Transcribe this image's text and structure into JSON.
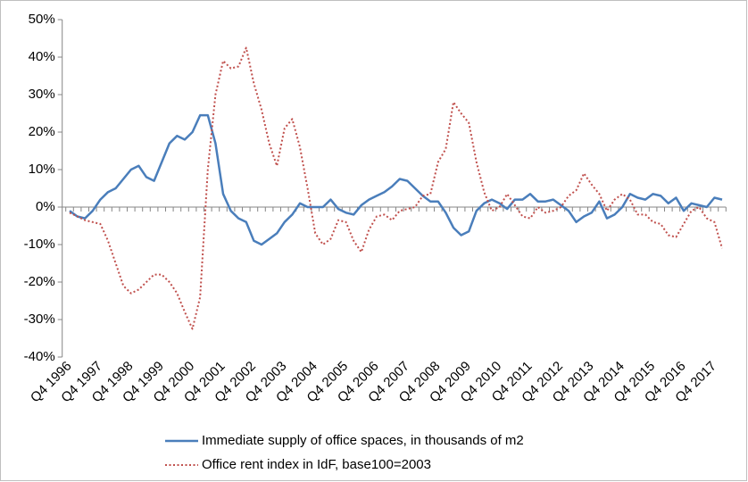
{
  "chart_data": {
    "type": "line",
    "categories": [
      "Q4 1996",
      null,
      null,
      null,
      "Q4 1997",
      null,
      null,
      null,
      "Q4 1998",
      null,
      null,
      null,
      "Q4 1999",
      null,
      null,
      null,
      "Q4 2000",
      null,
      null,
      null,
      "Q4 2001",
      null,
      null,
      null,
      "Q4 2002",
      null,
      null,
      null,
      "Q4 2003",
      null,
      null,
      null,
      "Q4 2004",
      null,
      null,
      null,
      "Q4 2005",
      null,
      null,
      null,
      "Q4 2006",
      null,
      null,
      null,
      "Q4 2007",
      null,
      null,
      null,
      "Q4 2008",
      null,
      null,
      null,
      "Q4 2009",
      null,
      null,
      null,
      "Q4 2010",
      null,
      null,
      null,
      "Q4 2011",
      null,
      null,
      null,
      "Q4 2012",
      null,
      null,
      null,
      "Q4 2013",
      null,
      null,
      null,
      "Q4 2014",
      null,
      null,
      null,
      "Q4 2015",
      null,
      null,
      null,
      "Q4 2016",
      null,
      null,
      null,
      "Q4 2017",
      null
    ],
    "series": [
      {
        "name": "Immediate supply of office spaces, in thousands of m2",
        "color": "#4a7ebb",
        "dash": "solid",
        "values": [
          -1,
          -2.5,
          -3,
          -1,
          2,
          4,
          5,
          7.5,
          10,
          11,
          8,
          7,
          12,
          17,
          19,
          18,
          20,
          24.5,
          24.5,
          17,
          3.5,
          -1,
          -3,
          -4,
          -9,
          -10,
          -8.5,
          -7,
          -4,
          -2,
          1,
          0,
          0,
          0,
          2,
          -0.5,
          -1.5,
          -2,
          0.5,
          2,
          3,
          4,
          5.5,
          7.5,
          7,
          5,
          3,
          1.5,
          1.5,
          -1.5,
          -5.5,
          -7.5,
          -6.5,
          -1,
          1,
          2,
          1,
          -0.5,
          2,
          2,
          3.5,
          1.5,
          1.5,
          2,
          0.5,
          -1,
          -4,
          -2.5,
          -1.5,
          1.5,
          -3,
          -2,
          0,
          3.5,
          2.5,
          2,
          3.5,
          3,
          1,
          2.5,
          -1,
          1,
          0.5,
          0,
          2.5,
          2
        ]
      },
      {
        "name": "Office rent index in IdF, base100=2003",
        "color": "#c0504d",
        "dash": "dotted",
        "values": [
          -1.5,
          -2.5,
          -3.5,
          -4,
          -4.5,
          -9,
          -15,
          -21,
          -23,
          -22,
          -20,
          -18,
          -18,
          -20,
          -23,
          -28,
          -32.5,
          -24,
          10,
          30,
          39,
          37,
          37.5,
          42.5,
          33,
          26,
          17,
          11,
          21,
          23.5,
          16,
          5,
          -7,
          -10,
          -8.5,
          -3.5,
          -4,
          -9,
          -12,
          -6,
          -2.5,
          -2,
          -3.5,
          -1,
          -0.5,
          0,
          3,
          3.5,
          12,
          15.5,
          28,
          25,
          22.5,
          12,
          4,
          -1,
          0,
          3.5,
          0.5,
          -2.5,
          -3,
          0,
          -1.5,
          -1,
          0,
          3,
          4.5,
          9,
          6,
          3.5,
          -1,
          2,
          3.5,
          2,
          -2,
          -2,
          -4,
          -4.5,
          -7.5,
          -8,
          -4.5,
          -1,
          0,
          -3,
          -4,
          -11
        ]
      }
    ],
    "ylim": [
      -40,
      50
    ],
    "yticks": [
      {
        "value": -40,
        "label": "-40%"
      },
      {
        "value": -30,
        "label": "-30%"
      },
      {
        "value": -20,
        "label": "-20%"
      },
      {
        "value": -10,
        "label": "-10%"
      },
      {
        "value": 0,
        "label": "0%"
      },
      {
        "value": 10,
        "label": "10%"
      },
      {
        "value": 20,
        "label": "20%"
      },
      {
        "value": 30,
        "label": "30%"
      },
      {
        "value": 40,
        "label": "40%"
      },
      {
        "value": 50,
        "label": "50%"
      }
    ],
    "legend": "bottom"
  }
}
